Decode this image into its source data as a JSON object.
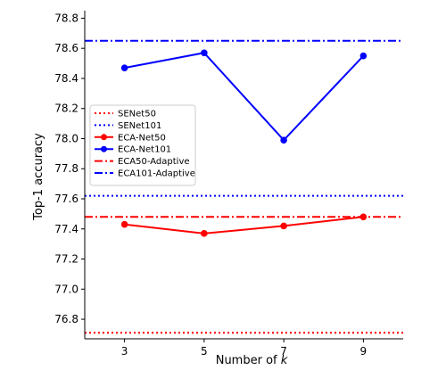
{
  "chart_data": {
    "type": "line",
    "xlabel_prefix": "Number of ",
    "xlabel_var": "k",
    "ylabel": "Top-1 accuracy",
    "x_ticks": [
      3,
      5,
      7,
      9
    ],
    "xlim": [
      2,
      10
    ],
    "y_ticks": [
      76.8,
      77.0,
      77.2,
      77.4,
      77.6,
      77.8,
      78.0,
      78.2,
      78.4,
      78.6,
      78.8
    ],
    "ylim": [
      76.67,
      78.85
    ],
    "grid": false,
    "legend_position": "center-left",
    "series": [
      {
        "name": "SENet50",
        "kind": "hline",
        "y": 76.71,
        "color": "#ff0000",
        "dash": "dotted"
      },
      {
        "name": "SENet101",
        "kind": "hline",
        "y": 77.62,
        "color": "#0000ff",
        "dash": "dotted"
      },
      {
        "name": "ECA-Net50",
        "kind": "line",
        "x": [
          3,
          5,
          7,
          9
        ],
        "y": [
          77.43,
          77.37,
          77.42,
          77.48
        ],
        "color": "#ff0000"
      },
      {
        "name": "ECA-Net101",
        "kind": "line",
        "x": [
          3,
          5,
          7,
          9
        ],
        "y": [
          78.47,
          78.57,
          77.99,
          78.55
        ],
        "color": "#0000ff"
      },
      {
        "name": "ECA50-Adaptive",
        "kind": "hline",
        "y": 77.48,
        "color": "#ff0000",
        "dash": "dashdot"
      },
      {
        "name": "ECA101-Adaptive",
        "kind": "hline",
        "y": 78.65,
        "color": "#0000ff",
        "dash": "dashdot"
      }
    ]
  }
}
